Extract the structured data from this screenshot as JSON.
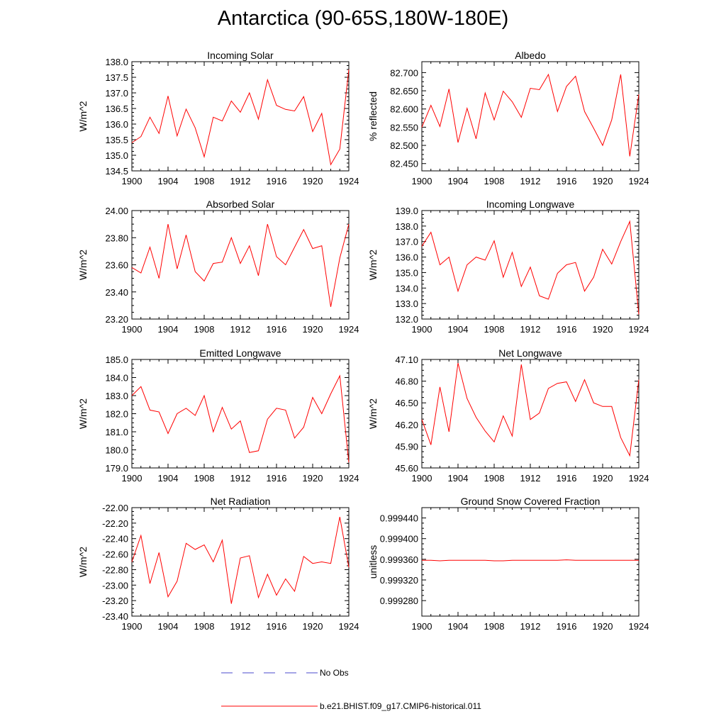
{
  "figure": {
    "title": "Antarctica (90-65S,180W-180E)",
    "line_color": "#ff0000",
    "obs_color": "#4a4acd"
  },
  "legend": {
    "items": [
      {
        "label": "No Obs",
        "color": "#4a4acd",
        "style": "dashed"
      },
      {
        "label": "b.e21.BHIST.f09_g17.CMIP6-historical.011",
        "color": "#ff0000",
        "style": "solid"
      }
    ]
  },
  "chart_data": [
    {
      "type": "line",
      "title": "Incoming Solar",
      "ylabel": "W/m^2",
      "xlim": [
        1900,
        1924
      ],
      "ylim": [
        134.5,
        138.0
      ],
      "x_ticks": [
        1900,
        1904,
        1908,
        1912,
        1916,
        1920,
        1924
      ],
      "y_ticks": [
        "134.5",
        "135.0",
        "135.5",
        "136.0",
        "136.5",
        "137.0",
        "137.5",
        "138.0"
      ],
      "x": [
        1900,
        1901,
        1902,
        1903,
        1904,
        1905,
        1906,
        1907,
        1908,
        1909,
        1910,
        1911,
        1912,
        1913,
        1914,
        1915,
        1916,
        1917,
        1918,
        1919,
        1920,
        1921,
        1922,
        1923,
        1924
      ],
      "values": [
        135.4,
        135.6,
        136.22,
        135.7,
        136.9,
        135.62,
        136.48,
        135.88,
        134.95,
        136.22,
        136.1,
        136.74,
        136.38,
        137.0,
        136.16,
        137.42,
        136.6,
        136.47,
        136.42,
        136.88,
        135.76,
        136.34,
        134.7,
        135.2,
        137.75
      ]
    },
    {
      "type": "line",
      "title": "Albedo",
      "ylabel": "% reflected",
      "xlim": [
        1900,
        1924
      ],
      "ylim": [
        82.43,
        82.73
      ],
      "x_ticks": [
        1900,
        1904,
        1908,
        1912,
        1916,
        1920,
        1924
      ],
      "y_ticks": [
        "82.450",
        "82.500",
        "82.550",
        "82.600",
        "82.650",
        "82.700"
      ],
      "x": [
        1900,
        1901,
        1902,
        1903,
        1904,
        1905,
        1906,
        1907,
        1908,
        1909,
        1910,
        1911,
        1912,
        1913,
        1914,
        1915,
        1916,
        1917,
        1918,
        1919,
        1920,
        1921,
        1922,
        1923,
        1924
      ],
      "values": [
        82.55,
        82.61,
        82.552,
        82.655,
        82.508,
        82.602,
        82.518,
        82.644,
        82.57,
        82.649,
        82.62,
        82.577,
        82.657,
        82.653,
        82.695,
        82.593,
        82.662,
        82.69,
        82.593,
        82.547,
        82.5,
        82.57,
        82.695,
        82.47,
        82.64
      ]
    },
    {
      "type": "line",
      "title": "Absorbed Solar",
      "ylabel": "W/m^2",
      "xlim": [
        1900,
        1924
      ],
      "ylim": [
        23.2,
        24.0
      ],
      "x_ticks": [
        1900,
        1904,
        1908,
        1912,
        1916,
        1920,
        1924
      ],
      "y_ticks": [
        "23.20",
        "23.40",
        "23.60",
        "23.80",
        "24.00"
      ],
      "x": [
        1900,
        1901,
        1902,
        1903,
        1904,
        1905,
        1906,
        1907,
        1908,
        1909,
        1910,
        1911,
        1912,
        1913,
        1914,
        1915,
        1916,
        1917,
        1918,
        1919,
        1920,
        1921,
        1922,
        1923,
        1924
      ],
      "values": [
        23.58,
        23.54,
        23.73,
        23.5,
        23.9,
        23.57,
        23.82,
        23.55,
        23.48,
        23.61,
        23.62,
        23.8,
        23.61,
        23.74,
        23.52,
        23.9,
        23.66,
        23.6,
        23.73,
        23.86,
        23.72,
        23.74,
        23.29,
        23.65,
        23.9
      ]
    },
    {
      "type": "line",
      "title": "Incoming Longwave",
      "ylabel": "W/m^2",
      "xlim": [
        1900,
        1924
      ],
      "ylim": [
        132.0,
        139.0
      ],
      "x_ticks": [
        1900,
        1904,
        1908,
        1912,
        1916,
        1920,
        1924
      ],
      "y_ticks": [
        "132.0",
        "133.0",
        "134.0",
        "135.0",
        "136.0",
        "137.0",
        "138.0",
        "139.0"
      ],
      "x": [
        1900,
        1901,
        1902,
        1903,
        1904,
        1905,
        1906,
        1907,
        1908,
        1909,
        1910,
        1911,
        1912,
        1913,
        1914,
        1915,
        1916,
        1917,
        1918,
        1919,
        1920,
        1921,
        1922,
        1923,
        1924
      ],
      "values": [
        136.7,
        137.6,
        135.5,
        136.0,
        133.8,
        135.5,
        136.0,
        135.8,
        137.05,
        134.7,
        136.3,
        134.1,
        135.35,
        133.5,
        133.28,
        134.95,
        135.5,
        135.65,
        133.8,
        134.7,
        136.5,
        135.55,
        137.0,
        138.3,
        132.3
      ]
    },
    {
      "type": "line",
      "title": "Emitted Longwave",
      "ylabel": "W/m^2",
      "xlim": [
        1900,
        1924
      ],
      "ylim": [
        179.0,
        185.0
      ],
      "x_ticks": [
        1900,
        1904,
        1908,
        1912,
        1916,
        1920,
        1924
      ],
      "y_ticks": [
        "179.0",
        "180.0",
        "181.0",
        "182.0",
        "183.0",
        "184.0",
        "185.0"
      ],
      "x": [
        1900,
        1901,
        1902,
        1903,
        1904,
        1905,
        1906,
        1907,
        1908,
        1909,
        1910,
        1911,
        1912,
        1913,
        1914,
        1915,
        1916,
        1917,
        1918,
        1919,
        1920,
        1921,
        1922,
        1923,
        1924
      ],
      "values": [
        183.0,
        183.5,
        182.2,
        182.1,
        180.9,
        182.0,
        182.3,
        181.9,
        183.0,
        181.0,
        182.35,
        181.15,
        181.6,
        179.85,
        179.95,
        181.7,
        182.3,
        182.2,
        180.65,
        181.25,
        182.9,
        182.0,
        183.1,
        184.1,
        179.3
      ]
    },
    {
      "type": "line",
      "title": "Net Longwave",
      "ylabel": "W/m^2",
      "xlim": [
        1900,
        1924
      ],
      "ylim": [
        45.6,
        47.1
      ],
      "x_ticks": [
        1900,
        1904,
        1908,
        1912,
        1916,
        1920,
        1924
      ],
      "y_ticks": [
        "45.60",
        "45.90",
        "46.20",
        "46.50",
        "46.80",
        "47.10"
      ],
      "x": [
        1900,
        1901,
        1902,
        1903,
        1904,
        1905,
        1906,
        1907,
        1908,
        1909,
        1910,
        1911,
        1912,
        1913,
        1914,
        1915,
        1916,
        1917,
        1918,
        1919,
        1920,
        1921,
        1922,
        1923,
        1924
      ],
      "values": [
        46.27,
        45.92,
        46.72,
        46.1,
        47.05,
        46.56,
        46.3,
        46.11,
        45.96,
        46.32,
        46.04,
        47.03,
        46.27,
        46.36,
        46.7,
        46.77,
        46.79,
        46.52,
        46.82,
        46.5,
        46.45,
        46.45,
        46.02,
        45.77,
        46.82
      ]
    },
    {
      "type": "line",
      "title": "Net Radiation",
      "ylabel": "W/m^2",
      "xlim": [
        1900,
        1924
      ],
      "ylim": [
        -23.4,
        -22.0
      ],
      "x_ticks": [
        1900,
        1904,
        1908,
        1912,
        1916,
        1920,
        1924
      ],
      "y_ticks": [
        "-23.40",
        "-23.20",
        "-23.00",
        "-22.80",
        "-22.60",
        "-22.40",
        "-22.20",
        "-22.00"
      ],
      "x": [
        1900,
        1901,
        1902,
        1903,
        1904,
        1905,
        1906,
        1907,
        1908,
        1909,
        1910,
        1911,
        1912,
        1913,
        1914,
        1915,
        1916,
        1917,
        1918,
        1919,
        1920,
        1921,
        1922,
        1923,
        1924
      ],
      "values": [
        -22.7,
        -22.36,
        -22.98,
        -22.58,
        -23.15,
        -22.95,
        -22.46,
        -22.54,
        -22.48,
        -22.7,
        -22.42,
        -23.24,
        -22.65,
        -22.62,
        -23.16,
        -22.86,
        -23.13,
        -22.92,
        -23.08,
        -22.63,
        -22.72,
        -22.7,
        -22.72,
        -22.12,
        -22.77
      ]
    },
    {
      "type": "line",
      "title": "Ground Snow Covered Fraction",
      "ylabel": "unitless",
      "xlim": [
        1900,
        1924
      ],
      "ylim": [
        0.99925,
        0.99946
      ],
      "x_ticks": [
        1900,
        1904,
        1908,
        1912,
        1916,
        1920,
        1924
      ],
      "y_ticks": [
        "0.999280",
        "0.999320",
        "0.999360",
        "0.999400",
        "0.999440"
      ],
      "x": [
        1900,
        1901,
        1902,
        1903,
        1904,
        1905,
        1906,
        1907,
        1908,
        1909,
        1910,
        1911,
        1912,
        1913,
        1914,
        1915,
        1916,
        1917,
        1918,
        1919,
        1920,
        1921,
        1922,
        1923,
        1924
      ],
      "values": [
        0.999358,
        0.999358,
        0.999357,
        0.999358,
        0.999358,
        0.999358,
        0.999358,
        0.999358,
        0.999357,
        0.999357,
        0.999358,
        0.999358,
        0.999358,
        0.999358,
        0.999358,
        0.999358,
        0.999359,
        0.999358,
        0.999358,
        0.999358,
        0.999358,
        0.999358,
        0.999358,
        0.999358,
        0.999358
      ]
    }
  ]
}
